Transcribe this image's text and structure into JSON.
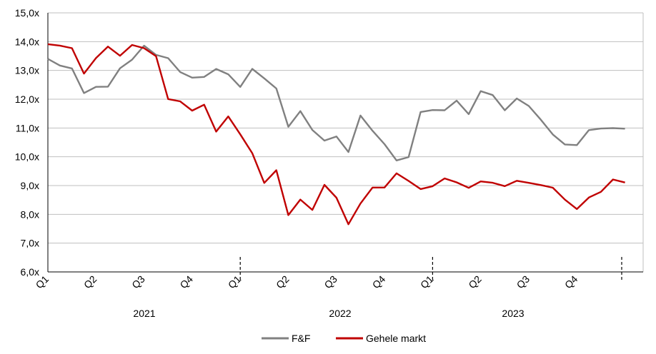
{
  "chart_data": {
    "type": "line",
    "title": "",
    "xlabel": "",
    "ylabel": "",
    "ylim": [
      6.0,
      15.0
    ],
    "yticks": [
      "6,0x",
      "7,0x",
      "8,0x",
      "9,0x",
      "10,0x",
      "11,0x",
      "12,0x",
      "13,0x",
      "14,0x",
      "15,0x"
    ],
    "grid": true,
    "legend_position": "bottom",
    "quarter_labels": [
      "Q1",
      "Q2",
      "Q3",
      "Q4",
      "Q1",
      "Q2",
      "Q3",
      "Q4",
      "Q1",
      "Q2",
      "Q3",
      "Q4"
    ],
    "year_labels": [
      "2021",
      "2022",
      "2023"
    ],
    "x": [
      0,
      0.25,
      0.5,
      0.75,
      1.0,
      1.25,
      1.5,
      1.75,
      2.0,
      2.25,
      2.5,
      2.75,
      3.0,
      3.25,
      3.5,
      3.75,
      4.0,
      4.25,
      4.5,
      4.75,
      5.0,
      5.25,
      5.5,
      5.75,
      6.0,
      6.25,
      6.5,
      6.75,
      7.0,
      7.25,
      7.5,
      7.75,
      8.0,
      8.25,
      8.5,
      8.75,
      9.0,
      9.25,
      9.5,
      9.75,
      10.0,
      10.25,
      10.5,
      10.75,
      11.0,
      11.25,
      11.5,
      11.75,
      12.0
    ],
    "series": [
      {
        "name": "F&F",
        "color": "#808080",
        "values": [
          13.4,
          13.1,
          13.0,
          12.2,
          12.5,
          12.5,
          13.1,
          13.3,
          13.8,
          13.5,
          13.5,
          13.0,
          12.8,
          12.7,
          13.0,
          12.8,
          12.5,
          13.1,
          12.8,
          12.3,
          11.0,
          11.5,
          11.0,
          10.6,
          10.8,
          10.1,
          11.4,
          10.8,
          10.5,
          9.9,
          10.1,
          11.5,
          11.6,
          11.5,
          12.0,
          11.5,
          12.4,
          12.1,
          11.6,
          11.9,
          11.8,
          11.3,
          10.9,
          10.4,
          10.4,
          10.8,
          11.0,
          11.0,
          11.1
        ]
      },
      {
        "name": "Gehele markt",
        "color": "#c00000",
        "values": [
          13.8,
          13.9,
          13.8,
          13.0,
          13.4,
          13.8,
          13.4,
          13.9,
          13.8,
          13.6,
          12.0,
          11.9,
          11.5,
          11.8,
          10.9,
          11.5,
          10.8,
          10.1,
          9.0,
          9.5,
          8.0,
          8.6,
          8.2,
          9.0,
          8.5,
          7.6,
          8.4,
          9.0,
          9.0,
          9.4,
          9.1,
          8.8,
          9.0,
          9.3,
          9.2,
          8.9,
          9.1,
          9.0,
          9.0,
          9.2,
          9.2,
          9.0,
          8.9,
          8.4,
          8.2,
          8.6,
          8.9,
          9.2,
          9.1
        ]
      }
    ]
  }
}
